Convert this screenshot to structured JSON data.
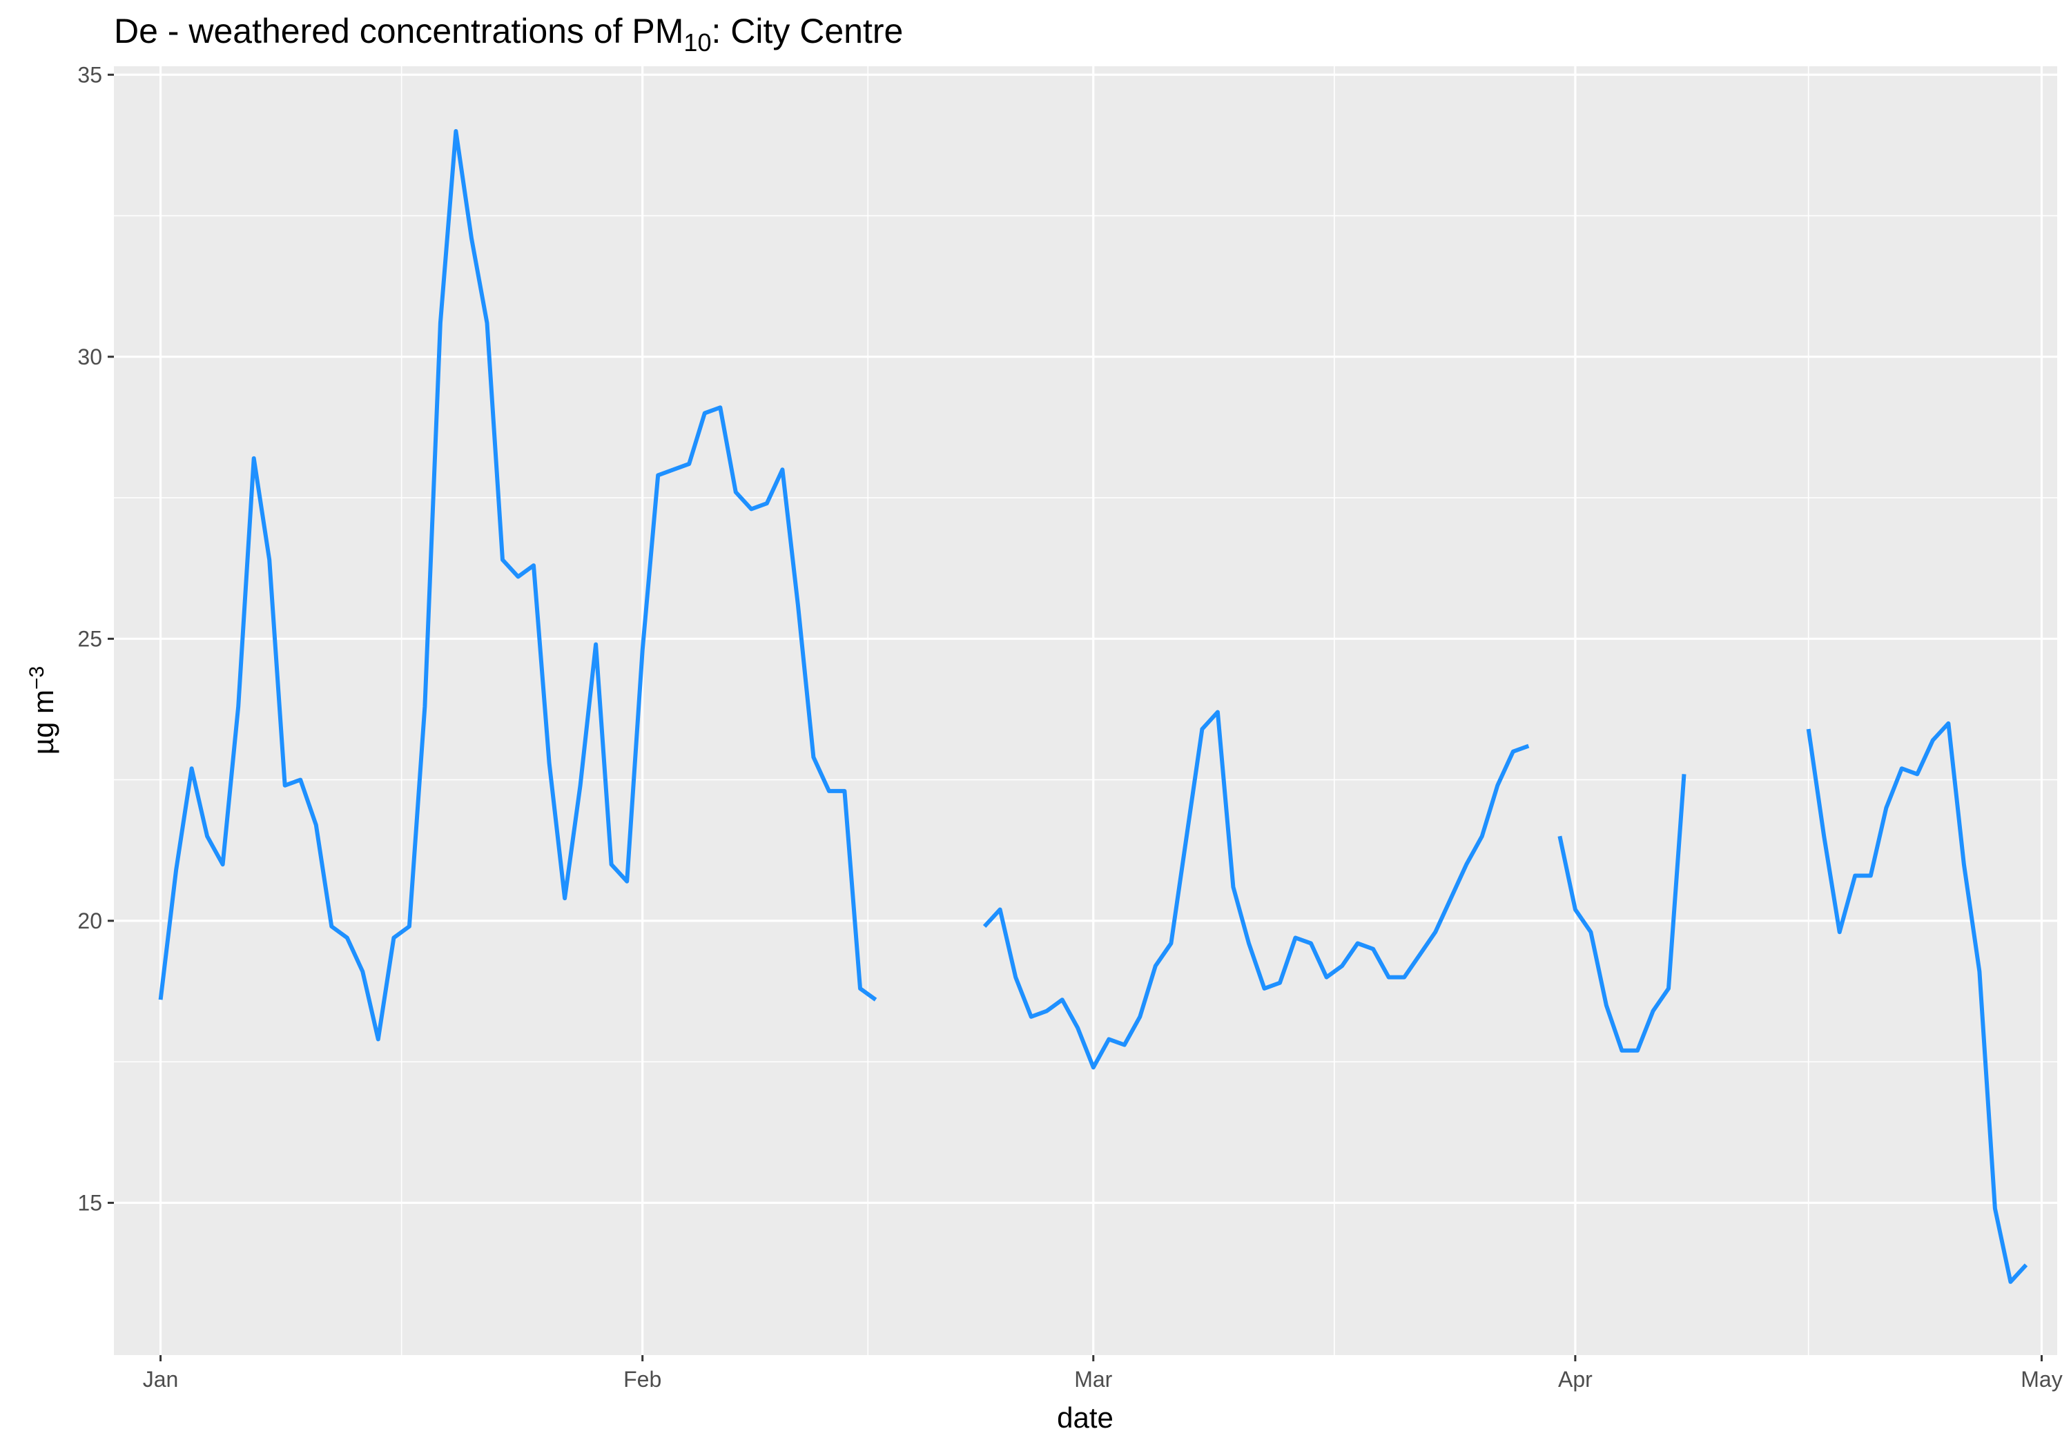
{
  "chart_data": {
    "type": "line",
    "title": "De - weathered concentrations of PM",
    "title_subscript": "10",
    "title_suffix": ": City Centre",
    "xlabel": "date",
    "ylabel": "µg m",
    "ylabel_superscript": "−3",
    "x_range": [
      "2019-12-29",
      "2020-05-02"
    ],
    "ylim": [
      12.3,
      35.15
    ],
    "y_ticks": [
      15,
      20,
      25,
      30,
      35
    ],
    "x_ticks": [
      {
        "date": "2020-01-01",
        "label": "Jan"
      },
      {
        "date": "2020-02-01",
        "label": "Feb"
      },
      {
        "date": "2020-03-01",
        "label": "Mar"
      },
      {
        "date": "2020-04-01",
        "label": "Apr"
      },
      {
        "date": "2020-05-01",
        "label": "May"
      }
    ],
    "grid": true,
    "line_color": "#1E90FF",
    "panel_background": "#EBEBEB",
    "series": [
      {
        "start_date": "2020-01-01",
        "values": [
          18.6,
          20.9,
          22.7,
          21.5,
          21.0,
          23.8,
          28.2,
          26.4,
          22.4,
          22.5,
          21.7,
          19.9,
          19.7,
          19.1,
          17.9,
          19.7,
          19.9,
          23.8,
          30.6,
          34.0,
          32.1,
          30.6,
          26.4,
          26.1,
          26.3,
          22.8,
          20.4,
          22.4,
          24.9,
          21.0,
          20.7,
          24.8,
          27.9,
          28.0,
          28.1,
          29.0,
          29.1,
          27.6,
          27.3,
          27.4,
          28.0,
          25.6,
          22.9,
          22.3,
          22.3,
          18.8,
          18.6
        ]
      },
      {
        "start_date": "2020-02-23",
        "values": [
          19.9,
          20.2,
          19.0,
          18.3,
          18.4,
          18.6,
          18.1,
          17.4,
          17.9,
          17.8,
          18.3,
          19.2,
          19.6,
          21.5,
          23.4,
          23.7,
          20.6,
          19.6,
          18.8,
          18.9,
          19.7,
          19.6,
          19.0,
          19.2,
          19.6,
          19.5,
          19.0,
          19.0,
          19.4,
          19.8,
          20.4,
          21.0,
          21.5,
          22.4,
          23.0,
          23.1
        ]
      },
      {
        "start_date": "2020-03-31",
        "values": [
          21.5,
          20.2,
          19.8,
          18.5,
          17.7,
          17.7,
          18.4,
          18.8,
          22.6
        ]
      },
      {
        "start_date": "2020-04-16",
        "values": [
          23.4,
          21.5,
          19.8,
          20.8,
          20.8,
          22.0,
          22.7,
          22.6,
          23.2,
          23.5,
          21.0,
          19.1,
          14.9,
          13.6,
          13.9
        ]
      }
    ]
  }
}
